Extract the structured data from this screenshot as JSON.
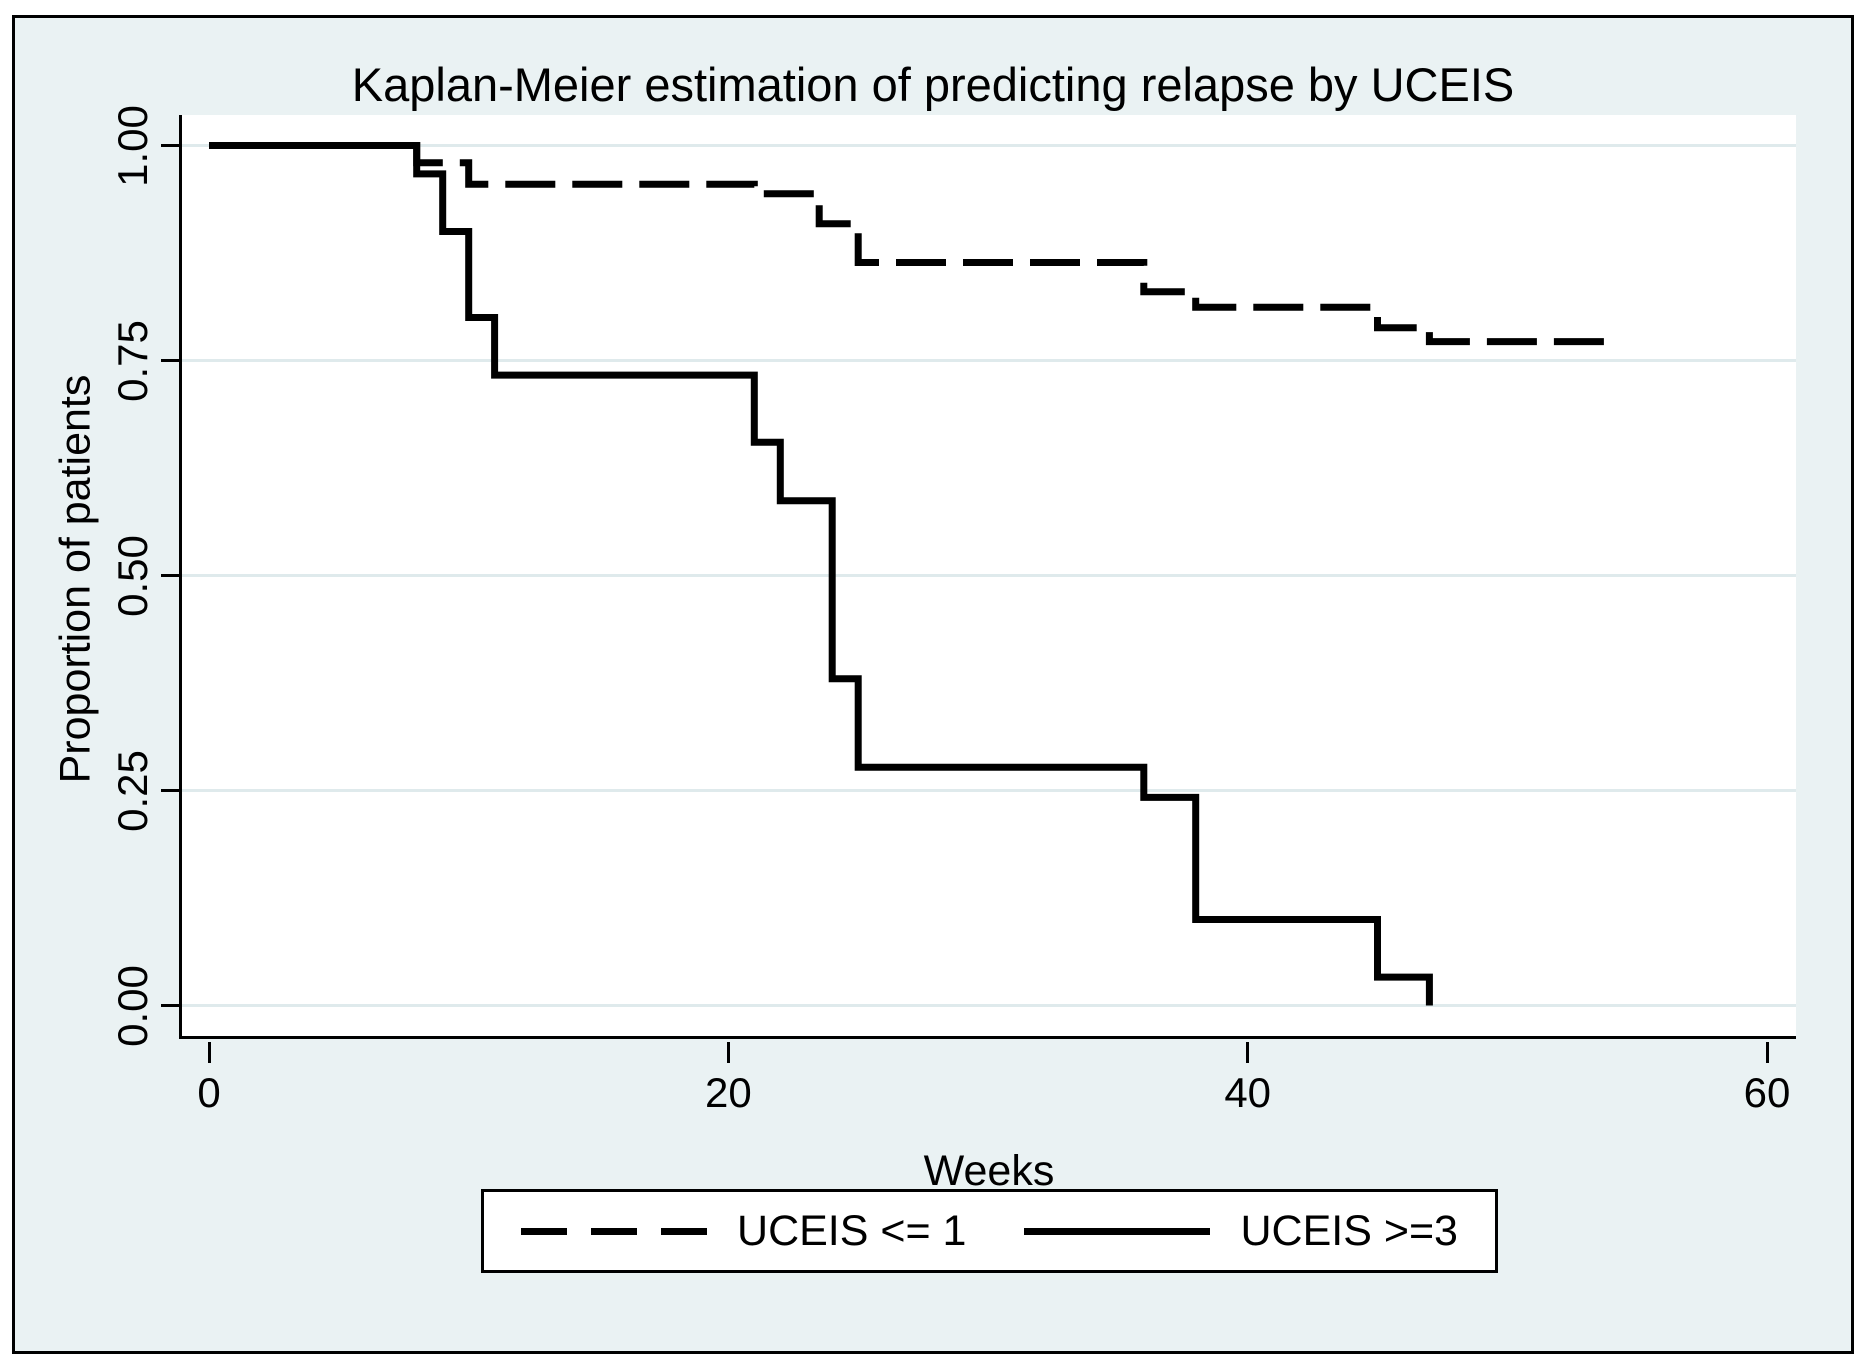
{
  "figure": {
    "background_color": "#eaf2f3",
    "plot_background_color": "#ffffff",
    "grid_color": "#dfeaec",
    "line_color": "#000000",
    "border_color": "#000000"
  },
  "chart_data": {
    "type": "line",
    "variant": "kaplan-meier-step",
    "title": "Kaplan-Meier estimation of predicting relapse by UCEIS",
    "xlabel": "Weeks",
    "ylabel": "Proportion of patients",
    "xlim": [
      0,
      62
    ],
    "ylim": [
      0,
      1
    ],
    "x_ticks": [
      {
        "value": 0,
        "label": "0"
      },
      {
        "value": 20,
        "label": "20"
      },
      {
        "value": 40,
        "label": "40"
      },
      {
        "value": 60,
        "label": "60"
      }
    ],
    "y_ticks": [
      {
        "value": 0.0,
        "label": "0.00"
      },
      {
        "value": 0.25,
        "label": "0.25"
      },
      {
        "value": 0.5,
        "label": "0.50"
      },
      {
        "value": 0.75,
        "label": "0.75"
      },
      {
        "value": 1.0,
        "label": "1.00"
      }
    ],
    "grid": true,
    "legend_position": "bottom-center",
    "series": [
      {
        "name": "UCEIS <= 1",
        "style": "dashed",
        "points": [
          [
            0,
            1.0
          ],
          [
            8,
            1.0
          ],
          [
            8,
            0.98
          ],
          [
            10,
            0.98
          ],
          [
            10,
            0.955
          ],
          [
            21,
            0.955
          ],
          [
            21,
            0.944
          ],
          [
            23.5,
            0.944
          ],
          [
            23.5,
            0.909
          ],
          [
            25,
            0.909
          ],
          [
            25,
            0.864
          ],
          [
            36,
            0.864
          ],
          [
            36,
            0.83
          ],
          [
            38,
            0.83
          ],
          [
            38,
            0.812
          ],
          [
            45,
            0.812
          ],
          [
            45,
            0.788
          ],
          [
            47,
            0.788
          ],
          [
            47,
            0.772
          ],
          [
            54,
            0.772
          ]
        ]
      },
      {
        "name": "UCEIS >=3",
        "style": "solid",
        "points": [
          [
            0,
            1.0
          ],
          [
            8,
            1.0
          ],
          [
            8,
            0.967
          ],
          [
            9,
            0.967
          ],
          [
            9,
            0.9
          ],
          [
            10,
            0.9
          ],
          [
            10,
            0.8
          ],
          [
            11,
            0.8
          ],
          [
            11,
            0.733
          ],
          [
            21,
            0.733
          ],
          [
            21,
            0.655
          ],
          [
            22,
            0.655
          ],
          [
            22,
            0.587
          ],
          [
            24,
            0.587
          ],
          [
            24,
            0.38
          ],
          [
            25,
            0.38
          ],
          [
            25,
            0.277
          ],
          [
            36,
            0.277
          ],
          [
            36,
            0.242
          ],
          [
            38,
            0.242
          ],
          [
            38,
            0.1
          ],
          [
            45,
            0.1
          ],
          [
            45,
            0.033
          ],
          [
            47,
            0.033
          ],
          [
            47,
            0.0
          ]
        ]
      }
    ]
  },
  "legend": {
    "items": [
      {
        "label": "UCEIS <= 1",
        "style": "dashed"
      },
      {
        "label": "UCEIS >=3",
        "style": "solid"
      }
    ]
  }
}
